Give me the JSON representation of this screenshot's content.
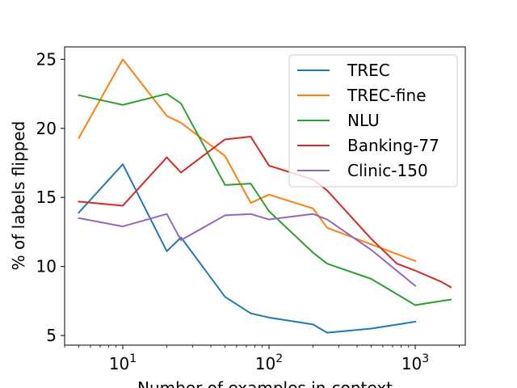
{
  "chart_data": {
    "type": "line",
    "title": "",
    "xlabel": "Number of examples in-context",
    "ylabel": "% of labels flipped",
    "xscale": "log",
    "xlim": [
      4.0,
      2200
    ],
    "ylim": [
      4.3,
      25.9
    ],
    "grid": false,
    "legend_position": "top-right",
    "x_ticks": [
      {
        "value": 10,
        "base": "10",
        "exp": "1"
      },
      {
        "value": 100,
        "base": "10",
        "exp": "2"
      },
      {
        "value": 1000,
        "base": "10",
        "exp": "3"
      }
    ],
    "y_ticks": [
      5,
      10,
      15,
      20,
      25
    ],
    "series": [
      {
        "name": "TREC",
        "color": "#1f77b4",
        "x": [
          5,
          10,
          20,
          25,
          50,
          75,
          100,
          200,
          250,
          500,
          1000
        ],
        "y": [
          13.9,
          17.4,
          11.1,
          12.1,
          7.8,
          6.6,
          6.3,
          5.8,
          5.2,
          5.5,
          6.0
        ]
      },
      {
        "name": "TREC-fine",
        "color": "#ff7f0e",
        "x": [
          5,
          10,
          20,
          25,
          50,
          75,
          100,
          200,
          250,
          500,
          1000
        ],
        "y": [
          19.3,
          25.0,
          20.9,
          20.4,
          18.0,
          14.6,
          15.2,
          14.2,
          12.8,
          11.6,
          10.4
        ]
      },
      {
        "name": "NLU",
        "color": "#2ca02c",
        "x": [
          5,
          10,
          20,
          25,
          50,
          75,
          100,
          200,
          250,
          500,
          1000,
          1500,
          1750
        ],
        "y": [
          22.4,
          21.7,
          22.5,
          21.8,
          15.9,
          16.0,
          14.0,
          11.0,
          10.2,
          9.1,
          7.2,
          7.5,
          7.6
        ]
      },
      {
        "name": "Banking-77",
        "color": "#d62728",
        "x": [
          5,
          10,
          20,
          25,
          50,
          75,
          100,
          200,
          250,
          500,
          750,
          1000,
          1500,
          1750
        ],
        "y": [
          14.7,
          14.4,
          17.9,
          16.8,
          19.2,
          19.4,
          17.3,
          16.3,
          15.5,
          12.0,
          10.2,
          9.7,
          8.9,
          8.5
        ]
      },
      {
        "name": "Clinic-150",
        "color": "#9467bd",
        "x": [
          5,
          10,
          20,
          25,
          50,
          75,
          100,
          200,
          250,
          500,
          1000
        ],
        "y": [
          13.5,
          12.9,
          13.8,
          11.9,
          13.7,
          13.8,
          13.4,
          13.8,
          13.4,
          11.2,
          8.6
        ]
      }
    ]
  }
}
